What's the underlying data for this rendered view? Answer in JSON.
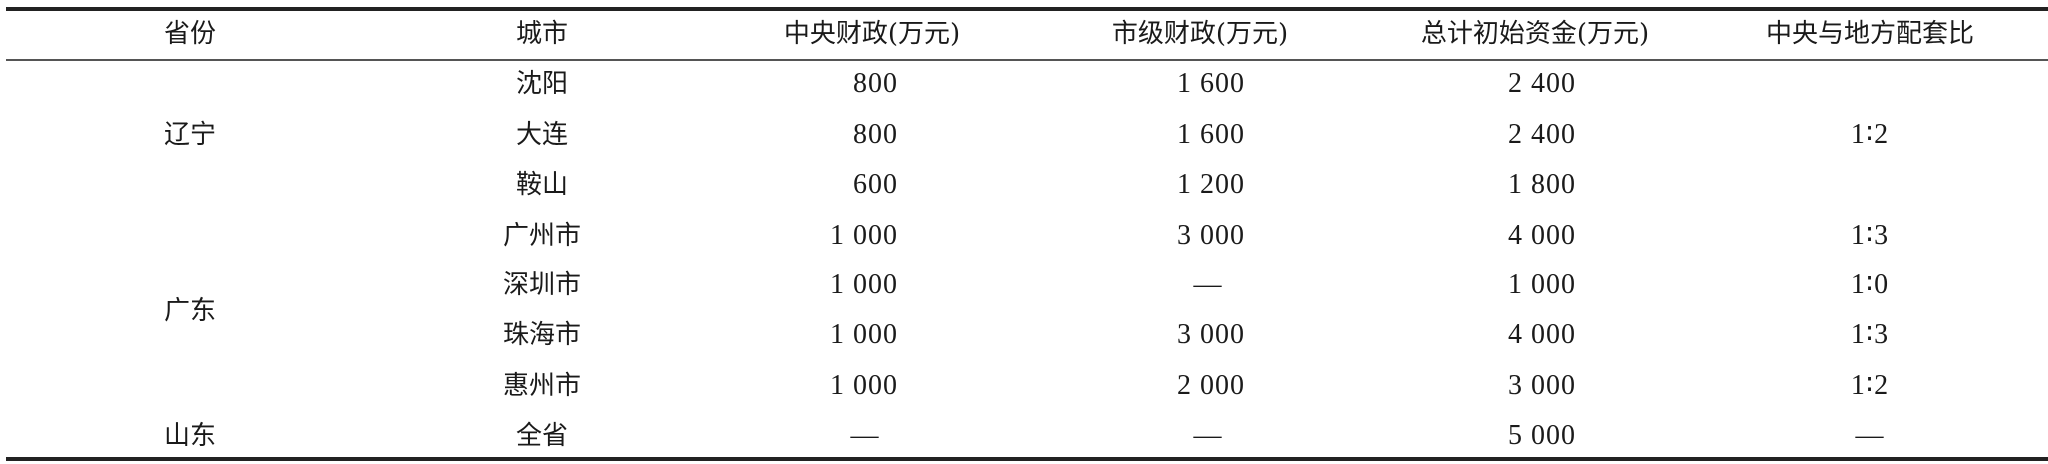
{
  "headers": [
    "省份",
    "城市",
    "中央财政(万元)",
    "市级财政(万元)",
    "总计初始资金(万元)",
    "中央与地方配套比"
  ],
  "provinces": [
    {
      "name": "辽宁",
      "ratio": "1∶2"
    },
    {
      "name": "广东"
    },
    {
      "name": "山东"
    }
  ],
  "rows": [
    {
      "city": "沈阳",
      "central": "800",
      "municipal": "1 600",
      "total": "2 400",
      "ratio": ""
    },
    {
      "city": "大连",
      "central": "800",
      "municipal": "1 600",
      "total": "2 400",
      "ratio": "1∶2"
    },
    {
      "city": "鞍山",
      "central": "600",
      "municipal": "1 200",
      "total": "1 800",
      "ratio": ""
    },
    {
      "city": "广州市",
      "central": "1 000",
      "municipal": "3 000",
      "total": "4 000",
      "ratio": "1∶3"
    },
    {
      "city": "深圳市",
      "central": "1 000",
      "municipal": "—",
      "total": "1 000",
      "ratio": "1∶0"
    },
    {
      "city": "珠海市",
      "central": "1 000",
      "municipal": "3 000",
      "total": "4 000",
      "ratio": "1∶3"
    },
    {
      "city": "惠州市",
      "central": "1 000",
      "municipal": "2 000",
      "total": "3 000",
      "ratio": "1∶2"
    },
    {
      "city": "全省",
      "central": "—",
      "municipal": "—",
      "total": "5 000",
      "ratio": "—"
    }
  ]
}
